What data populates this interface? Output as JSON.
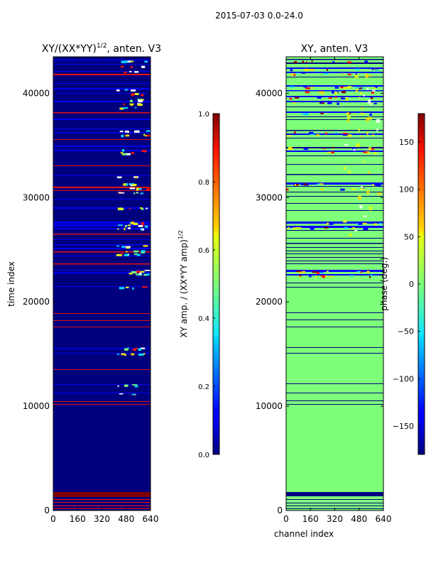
{
  "suptitle": "2015-07-03 0.0-24.0",
  "chart_data": [
    {
      "type": "heatmap",
      "title": "XY/(XX*YY)^{1/2}, anten. V3",
      "title_main": "XY/(XX*YY)",
      "title_sup": "1/2",
      "title_tail": ", anten. V3",
      "xlabel": "",
      "ylabel": "time index",
      "xlim": [
        0,
        640
      ],
      "ylim": [
        0,
        43500
      ],
      "x_ticks": [
        0,
        160,
        320,
        480,
        640
      ],
      "y_ticks": [
        0,
        10000,
        20000,
        30000,
        40000
      ],
      "x_tick_labels": [
        "0",
        "160",
        "320",
        "480",
        "640"
      ],
      "y_tick_labels": [
        "0",
        "10000",
        "20000",
        "30000",
        "40000"
      ],
      "colormap": "jet",
      "colorbar": {
        "label": "XY amp. / (XX*YY amp)^{1/2}",
        "label_main": "XY amp. / (XX*YY amp)",
        "label_sup": "1/2",
        "range": [
          0,
          1
        ],
        "ticks": [
          0.0,
          0.2,
          0.4,
          0.6,
          0.8,
          1.0
        ],
        "tick_labels": [
          "0.0",
          "0.2",
          "0.4",
          "0.6",
          "0.8",
          "1.0"
        ]
      }
    },
    {
      "type": "heatmap",
      "title": "XY, anten. V3",
      "xlabel": "channel index",
      "ylabel": "",
      "xlim": [
        0,
        640
      ],
      "ylim": [
        0,
        43500
      ],
      "x_ticks": [
        0,
        160,
        320,
        480,
        640
      ],
      "y_ticks": [
        0,
        10000,
        20000,
        30000,
        40000
      ],
      "x_tick_labels": [
        "0",
        "160",
        "320",
        "480",
        "640"
      ],
      "y_tick_labels": [
        "0",
        "10000",
        "20000",
        "30000",
        "40000"
      ],
      "colormap": "jet",
      "colorbar": {
        "label": "phase (deg.)",
        "range": [
          -180,
          180
        ],
        "ticks": [
          -150,
          -100,
          -50,
          0,
          50,
          100,
          150
        ],
        "tick_labels": [
          "−150",
          "−100",
          "−50",
          "0",
          "50",
          "100",
          "150"
        ]
      }
    }
  ]
}
